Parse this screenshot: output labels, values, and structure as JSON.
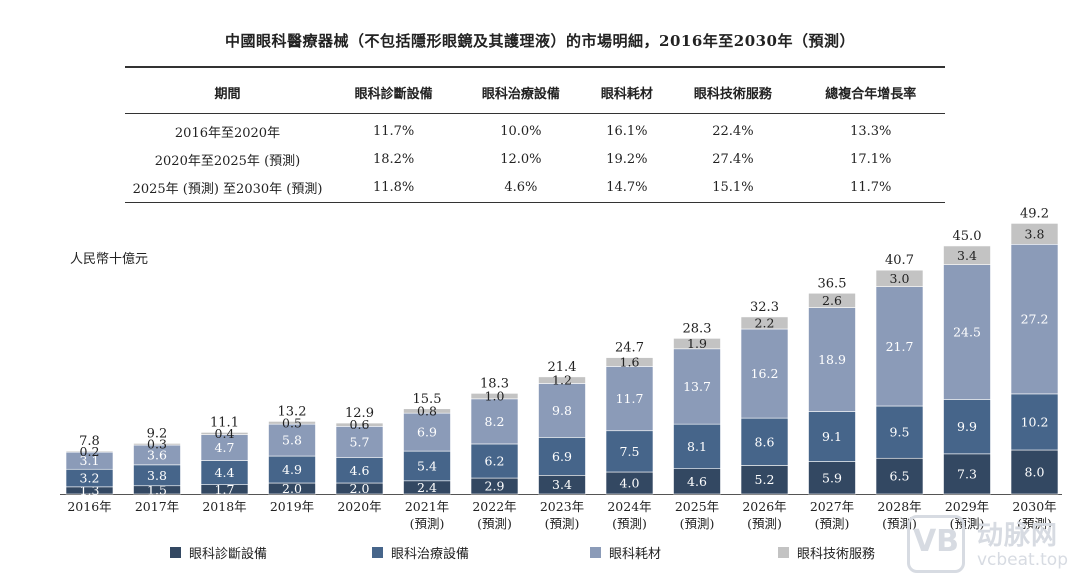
{
  "title": "中國眼科醫療器械（不包括隱形眼鏡及其護理液）的市場明細，2016年至2030年（預測）",
  "table": {
    "headers": [
      "期間",
      "眼科診斷設備",
      "眼科治療設備",
      "眼科耗材",
      "眼科技術服務",
      "總複合年增長率"
    ],
    "rows": [
      [
        "2016年至2020年",
        "11.7%",
        "10.0%",
        "16.1%",
        "22.4%",
        "13.3%"
      ],
      [
        "2020年至2025年 (預測)",
        "18.2%",
        "12.0%",
        "19.2%",
        "27.4%",
        "17.1%"
      ],
      [
        "2025年 (預測) 至2030年 (預測)",
        "11.8%",
        "4.6%",
        "14.7%",
        "15.1%",
        "11.7%"
      ]
    ]
  },
  "unit_label": "人民幣十億元",
  "chart_data": {
    "type": "bar",
    "stacked": true,
    "categories": [
      "2016年",
      "2017年",
      "2018年",
      "2019年",
      "2020年",
      "2021年",
      "2022年",
      "2023年",
      "2024年",
      "2025年",
      "2026年",
      "2027年",
      "2028年",
      "2029年",
      "2030年"
    ],
    "category_sublabels": [
      "",
      "",
      "",
      "",
      "",
      "(預測)",
      "(預測)",
      "(預測)",
      "(預測)",
      "(預測)",
      "(預測)",
      "(預測)",
      "(預測)",
      "(預測)",
      "(預測)"
    ],
    "series": [
      {
        "name": "眼科診斷設備",
        "color": "#334862",
        "values": [
          1.3,
          1.5,
          1.7,
          2.0,
          2.0,
          2.4,
          2.9,
          3.4,
          4.0,
          4.6,
          5.2,
          5.9,
          6.5,
          7.3,
          8.0
        ]
      },
      {
        "name": "眼科治療設備",
        "color": "#46658a",
        "values": [
          3.2,
          3.8,
          4.4,
          4.9,
          4.6,
          5.4,
          6.2,
          6.9,
          7.5,
          8.1,
          8.6,
          9.1,
          9.5,
          9.9,
          10.2
        ]
      },
      {
        "name": "眼科耗材",
        "color": "#8b9bb8",
        "values": [
          3.1,
          3.6,
          4.7,
          5.8,
          5.7,
          6.9,
          8.2,
          9.8,
          11.7,
          13.7,
          16.2,
          18.9,
          21.7,
          24.5,
          27.2
        ]
      },
      {
        "name": "眼科技術服務",
        "color": "#c3c3c3",
        "values": [
          0.2,
          0.3,
          0.4,
          0.5,
          0.6,
          0.8,
          1.0,
          1.2,
          1.6,
          1.9,
          2.2,
          2.6,
          3.0,
          3.4,
          3.8
        ]
      }
    ],
    "totals": [
      7.8,
      9.2,
      11.1,
      13.2,
      12.9,
      15.5,
      18.3,
      21.4,
      24.7,
      28.3,
      32.3,
      36.5,
      40.7,
      45.0,
      49.2
    ],
    "ylim": [
      0,
      50
    ],
    "legend_position": "bottom"
  },
  "watermark": {
    "top": "动脉网",
    "bottom": "vcbeat.top",
    "icon": "vb-logo-icon"
  }
}
